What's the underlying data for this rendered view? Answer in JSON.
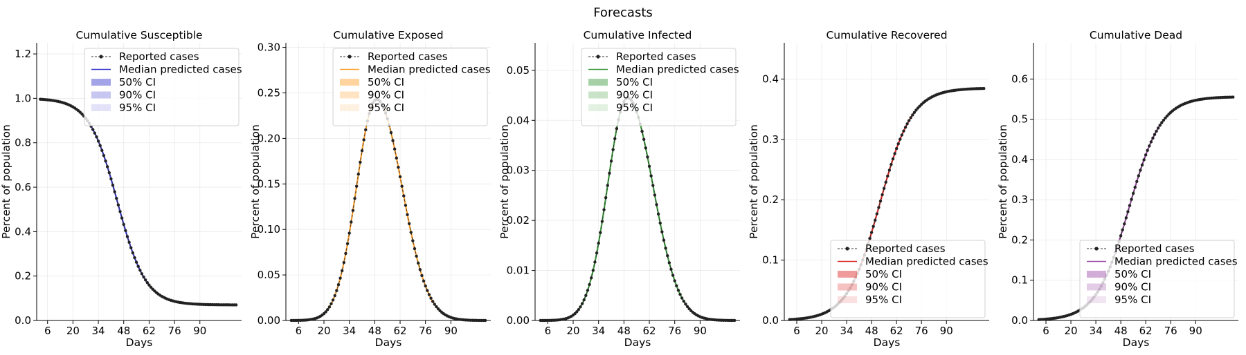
{
  "figure": {
    "suptitle": "Forecasts"
  },
  "chart_data": [
    {
      "type": "line",
      "title": "Cumulative Susceptible",
      "xlabel": "Days",
      "ylabel": "Percent of population",
      "xlim": [
        0,
        113
      ],
      "ylim": [
        0,
        1.25
      ],
      "xticks": [
        6,
        20,
        34,
        48,
        62,
        76,
        90
      ],
      "yticks": [
        0.0,
        0.2,
        0.4,
        0.6,
        0.8,
        1.0,
        1.2
      ],
      "ytick_labels": [
        "0.0",
        "0.2",
        "0.4",
        "0.6",
        "0.8",
        "1.0",
        "1.2"
      ],
      "grid": true,
      "legend_position": "upper-center",
      "color": "#3333cc",
      "curve": "susceptible",
      "day_range": [
        2,
        110
      ],
      "series": [
        {
          "name": "Reported cases",
          "points": [
            [
              2,
              1.0
            ],
            [
              10,
              0.992
            ],
            [
              20,
              0.955
            ],
            [
              28,
              0.87
            ],
            [
              34,
              0.75
            ],
            [
              40,
              0.6
            ],
            [
              44,
              0.49
            ],
            [
              48,
              0.38
            ],
            [
              52,
              0.28
            ],
            [
              56,
              0.2
            ],
            [
              62,
              0.132
            ],
            [
              70,
              0.094
            ],
            [
              76,
              0.082
            ],
            [
              90,
              0.074
            ],
            [
              110,
              0.07
            ]
          ]
        },
        {
          "name": "Median predicted cases"
        },
        {
          "name": "50% CI"
        },
        {
          "name": "90% CI"
        },
        {
          "name": "95% CI"
        }
      ]
    },
    {
      "type": "line",
      "title": "Cumulative Exposed",
      "xlabel": "Days",
      "ylabel": "Percent of population",
      "xlim": [
        -1,
        112
      ],
      "ylim": [
        0,
        0.305
      ],
      "xticks": [
        6,
        20,
        34,
        48,
        62,
        76,
        90
      ],
      "yticks": [
        0.0,
        0.05,
        0.1,
        0.15,
        0.2,
        0.25,
        0.3
      ],
      "ytick_labels": [
        "0.00",
        "0.05",
        "0.10",
        "0.15",
        "0.20",
        "0.25",
        "0.30"
      ],
      "grid": true,
      "legend_position": "upper-center",
      "color": "#ff9f2a",
      "curve": "peak",
      "peak": 0.243,
      "peak_day": 49,
      "sigma_left": 11,
      "sigma_right": 14,
      "day_range": [
        2,
        109
      ],
      "series": [
        {
          "name": "Reported cases",
          "points": [
            [
              2,
              0.001
            ],
            [
              20,
              0.02
            ],
            [
              34,
              0.1
            ],
            [
              42,
              0.2
            ],
            [
              49,
              0.243
            ],
            [
              56,
              0.21
            ],
            [
              62,
              0.155
            ],
            [
              76,
              0.055
            ],
            [
              90,
              0.015
            ],
            [
              109,
              0.004
            ]
          ]
        },
        {
          "name": "Median predicted cases"
        },
        {
          "name": "50% CI"
        },
        {
          "name": "90% CI"
        },
        {
          "name": "95% CI"
        }
      ]
    },
    {
      "type": "line",
      "title": "Cumulative Infected",
      "xlabel": "Days",
      "ylabel": "Percent of population",
      "xlim": [
        -1,
        112
      ],
      "ylim": [
        0,
        0.0555
      ],
      "xticks": [
        6,
        20,
        34,
        48,
        62,
        76,
        90
      ],
      "yticks": [
        0.0,
        0.01,
        0.02,
        0.03,
        0.04,
        0.05
      ],
      "ytick_labels": [
        "0.00",
        "0.01",
        "0.02",
        "0.03",
        "0.04",
        "0.05"
      ],
      "grid": true,
      "legend_position": "upper-center",
      "color": "#3a9a3a",
      "curve": "peak",
      "peak": 0.0445,
      "peak_day": 50,
      "sigma_left": 11,
      "sigma_right": 14,
      "day_range": [
        2,
        109
      ],
      "series": [
        {
          "name": "Reported cases",
          "points": [
            [
              2,
              0.0002
            ],
            [
              20,
              0.004
            ],
            [
              34,
              0.02
            ],
            [
              42,
              0.037
            ],
            [
              50,
              0.0445
            ],
            [
              58,
              0.038
            ],
            [
              62,
              0.032
            ],
            [
              76,
              0.011
            ],
            [
              90,
              0.003
            ],
            [
              109,
              0.0008
            ]
          ]
        },
        {
          "name": "Median predicted cases"
        },
        {
          "name": "50% CI"
        },
        {
          "name": "90% CI"
        },
        {
          "name": "95% CI"
        }
      ]
    },
    {
      "type": "line",
      "title": "Cumulative Recovered",
      "xlabel": "Days",
      "ylabel": "Percent of population",
      "xlim": [
        -1,
        114
      ],
      "ylim": [
        0,
        0.46
      ],
      "xticks": [
        6,
        20,
        34,
        48,
        62,
        76,
        90
      ],
      "yticks": [
        0.0,
        0.1,
        0.2,
        0.3,
        0.4
      ],
      "ytick_labels": [
        "0.0",
        "0.1",
        "0.2",
        "0.3",
        "0.4"
      ],
      "grid": true,
      "legend_position": "lower-right",
      "color": "#dd2222",
      "curve": "logistic",
      "plateau": 0.385,
      "midpoint": 52.5,
      "rate": 0.11,
      "day_range": [
        2,
        111
      ],
      "series": [
        {
          "name": "Reported cases",
          "points": [
            [
              2,
              0.001
            ],
            [
              20,
              0.012
            ],
            [
              34,
              0.045
            ],
            [
              48,
              0.15
            ],
            [
              56,
              0.23
            ],
            [
              62,
              0.29
            ],
            [
              76,
              0.355
            ],
            [
              90,
              0.375
            ],
            [
              111,
              0.382
            ]
          ]
        },
        {
          "name": "Median predicted cases"
        },
        {
          "name": "50% CI"
        },
        {
          "name": "90% CI"
        },
        {
          "name": "95% CI"
        }
      ]
    },
    {
      "type": "line",
      "title": "Cumulative Dead",
      "xlabel": "Days",
      "ylabel": "Percent of population",
      "xlim": [
        -1,
        114
      ],
      "ylim": [
        0,
        0.69
      ],
      "xticks": [
        6,
        20,
        34,
        48,
        62,
        76,
        90
      ],
      "yticks": [
        0.0,
        0.1,
        0.2,
        0.3,
        0.4,
        0.5,
        0.6
      ],
      "ytick_labels": [
        "0.0",
        "0.1",
        "0.2",
        "0.3",
        "0.4",
        "0.5",
        "0.6"
      ],
      "grid": true,
      "legend_position": "lower-right",
      "color": "#9b4aa6",
      "curve": "logistic",
      "plateau": 0.556,
      "midpoint": 52.5,
      "rate": 0.11,
      "day_range": [
        2,
        111
      ],
      "series": [
        {
          "name": "Reported cases",
          "points": [
            [
              2,
              0.001
            ],
            [
              20,
              0.015
            ],
            [
              34,
              0.065
            ],
            [
              48,
              0.22
            ],
            [
              56,
              0.33
            ],
            [
              62,
              0.42
            ],
            [
              76,
              0.51
            ],
            [
              90,
              0.54
            ],
            [
              111,
              0.55
            ]
          ]
        },
        {
          "name": "Median predicted cases"
        },
        {
          "name": "50% CI"
        },
        {
          "name": "90% CI"
        },
        {
          "name": "95% CI"
        }
      ]
    }
  ]
}
